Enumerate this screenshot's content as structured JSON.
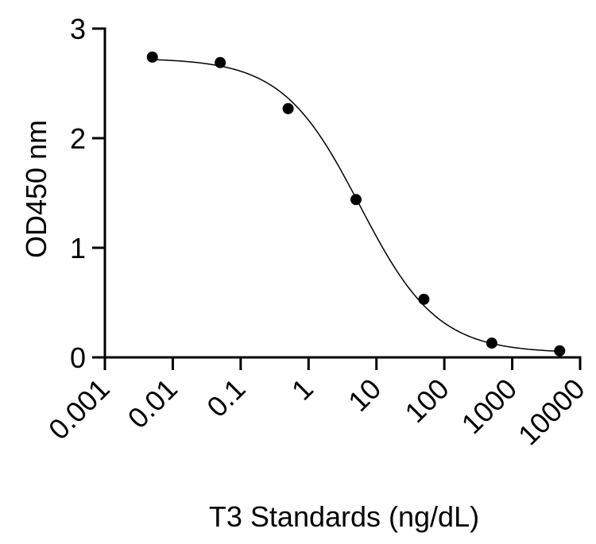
{
  "chart_data": {
    "type": "scatter",
    "title": "",
    "xlabel": "T3 Standards (ng/dL)",
    "ylabel": "OD450 nm",
    "x_scale": "log",
    "xlim": [
      0.001,
      10000
    ],
    "ylim": [
      0,
      3
    ],
    "x_ticks": [
      0.001,
      0.01,
      0.1,
      1,
      10,
      100,
      1000,
      10000
    ],
    "x_tick_labels": [
      "0.001",
      "0.01",
      "0.1",
      "1",
      "10",
      "100",
      "1000",
      "10000"
    ],
    "y_ticks": [
      0,
      1,
      2,
      3
    ],
    "y_tick_labels": [
      "0",
      "1",
      "2",
      "3"
    ],
    "grid": false,
    "series": [
      {
        "x": [
          0.005,
          0.05,
          0.5,
          5,
          50,
          500,
          5000
        ],
        "y": [
          2.74,
          2.69,
          2.27,
          1.44,
          0.53,
          0.13,
          0.06
        ],
        "marker": "circle",
        "color": "#000000"
      }
    ],
    "fit_curve": {
      "model": "4PL",
      "top": 2.73,
      "bottom": 0.04,
      "ec50": 5.7,
      "hill": 0.76,
      "color": "#000000"
    }
  }
}
